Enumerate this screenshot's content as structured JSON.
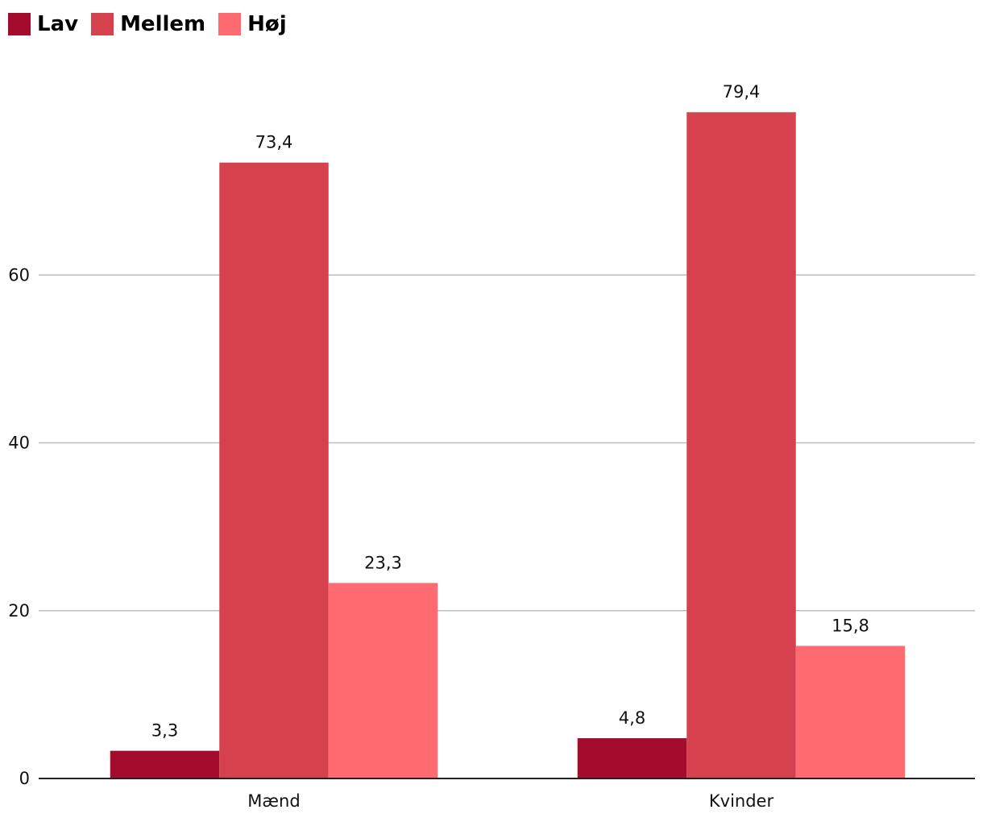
{
  "chart_data": {
    "type": "bar",
    "categories": [
      "Mænd",
      "Kvinder"
    ],
    "series": [
      {
        "name": "Lav",
        "color": "#A50B2D",
        "values": [
          3.3,
          4.8
        ],
        "labels": [
          "3,3",
          "4,8"
        ]
      },
      {
        "name": "Mellem",
        "color": "#D6414E",
        "values": [
          73.4,
          79.4
        ],
        "labels": [
          "73,4",
          "79,4"
        ]
      },
      {
        "name": "Høj",
        "color": "#FF6B70",
        "values": [
          23.3,
          15.8
        ],
        "labels": [
          "23,3",
          "15,8"
        ]
      }
    ],
    "title": "",
    "xlabel": "",
    "ylabel": "",
    "ylim": [
      0,
      80
    ],
    "yticks": [
      0,
      20,
      40,
      60
    ],
    "ytick_labels": [
      "0",
      "20",
      "40",
      "60"
    ],
    "grid": true,
    "legend_position": "top-left",
    "colors": {
      "grid": "#BDBDBD",
      "axis": "#222222"
    }
  }
}
